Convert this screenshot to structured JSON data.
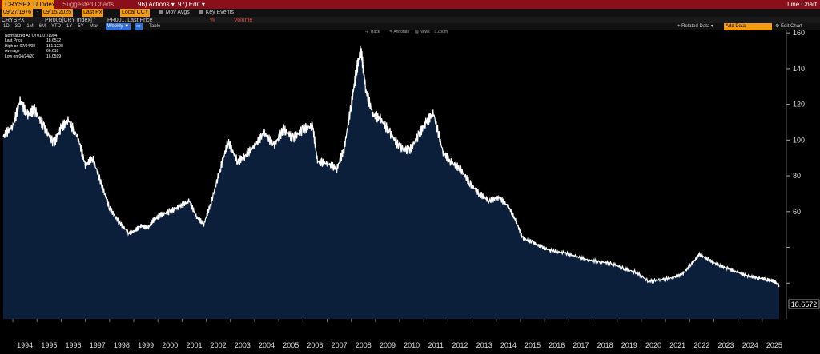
{
  "header": {
    "ticker": ".CRYSPX U Index",
    "link_label": "Suggested Charts",
    "actions_label": "Actions",
    "edit_label": "Edit",
    "view_title": "Line Chart"
  },
  "controls": {
    "start_date": "09/27/1976",
    "end_date": "09/15/2025",
    "field": "Last Px",
    "currency": "Local CCY",
    "mov_avgs": "Mov Avgs",
    "key_events": "Key Events",
    "series_line": "CRYSPX",
    "series_2": "PR005[CRY Index] /",
    "series_3": "PR00... Last Price",
    "volume": "Volume",
    "periods": [
      "1D",
      "3D",
      "1M",
      "6M",
      "YTD",
      "1Y",
      "5Y",
      "Max"
    ],
    "frequency": "Weekly",
    "table_label": "Table",
    "related_data": "Related Data",
    "add_data": "Add Data",
    "edit_chart": "Edit Chart"
  },
  "toolbar": {
    "track": "Track",
    "annotate": "Annotate",
    "news": "News",
    "zoom": "Zoom"
  },
  "legend": {
    "title": "Normalized As Of 01/07/1994",
    "rows": [
      {
        "label": "Last Price",
        "value": "18.6572"
      },
      {
        "label": "High on 07/04/08",
        "value": "151.1228"
      },
      {
        "label": "Average",
        "value": "66.618"
      },
      {
        "label": "Low on 04/24/20",
        "value": "16.0599"
      }
    ]
  },
  "last_value_label": "18.6572",
  "colors": {
    "background": "#000000",
    "area_fill": "#0b1f3b",
    "line": "#ffffff",
    "header_bar": "#8b0f1a",
    "field": "#f39c12"
  },
  "chart_data": {
    "type": "area",
    "title": "",
    "xlabel": "",
    "ylabel": "",
    "ylim": [
      0,
      165
    ],
    "yticks": [
      20,
      40,
      60,
      80,
      100,
      120,
      140,
      160
    ],
    "ytick_labels": [
      "",
      "",
      "60",
      "80",
      "100",
      "120",
      "140",
      "160"
    ],
    "xlim": [
      1993.6,
      2025.9
    ],
    "xtick_labels": [
      "1994",
      "1995",
      "1996",
      "1997",
      "1998",
      "1999",
      "2000",
      "2001",
      "2002",
      "2003",
      "2004",
      "2005",
      "2006",
      "2007",
      "2008",
      "2009",
      "2010",
      "2011",
      "2012",
      "2013",
      "2014",
      "2015",
      "2016",
      "2017",
      "2018",
      "2019",
      "2020",
      "2021",
      "2022",
      "2023",
      "2024",
      "2025"
    ],
    "grid": false,
    "series": [
      {
        "x": [
          1993.6,
          1994.0,
          1994.3,
          1994.6,
          1994.9,
          1995.3,
          1995.7,
          1996.0,
          1996.3,
          1996.7,
          1997.0,
          1997.3,
          1997.7,
          1998.0,
          1998.4,
          1998.8,
          1999.0,
          1999.3,
          1999.6,
          1999.8,
          2000.1,
          2000.5,
          2000.9,
          2001.3,
          2001.6,
          2001.9,
          2002.2,
          2002.6,
          2002.9,
          2003.3,
          2003.6,
          2004.0,
          2004.4,
          2004.8,
          2005.2,
          2005.6,
          2006.0,
          2006.4,
          2006.6,
          2007.0,
          2007.4,
          2007.7,
          2008.0,
          2008.2,
          2008.4,
          2008.6,
          2008.9,
          2009.2,
          2009.6,
          2010.0,
          2010.4,
          2010.8,
          2011.1,
          2011.4,
          2011.8,
          2012.1,
          2012.5,
          2012.9,
          2013.3,
          2013.7,
          2014.1,
          2014.5,
          2014.8,
          2015.1,
          2015.5,
          2015.9,
          2016.3,
          2016.8,
          2017.3,
          2017.8,
          2018.3,
          2018.8,
          2019.3,
          2019.8,
          2020.3,
          2020.8,
          2021.3,
          2021.7,
          2022.1,
          2022.4,
          2022.8,
          2023.2,
          2023.6,
          2024.0,
          2024.4,
          2024.8,
          2025.2,
          2025.5,
          2025.7
        ],
        "values": [
          102,
          108,
          122,
          114,
          117,
          107,
          98,
          107,
          111,
          101,
          86,
          90,
          74,
          62,
          54,
          48,
          49,
          52,
          51,
          55,
          58,
          60,
          63,
          66,
          57,
          53,
          65,
          85,
          99,
          88,
          91,
          97,
          104,
          97,
          106,
          101,
          106,
          108,
          88,
          87,
          84,
          95,
          120,
          138,
          151,
          128,
          114,
          112,
          104,
          96,
          94,
          103,
          110,
          115,
          93,
          88,
          84,
          76,
          70,
          66,
          68,
          63,
          55,
          45,
          43,
          40,
          38,
          37,
          35,
          33,
          32,
          31,
          28,
          26,
          21,
          22,
          23,
          25,
          31,
          36,
          33,
          30,
          28,
          26,
          24,
          23,
          22,
          21,
          18.66
        ]
      }
    ]
  }
}
